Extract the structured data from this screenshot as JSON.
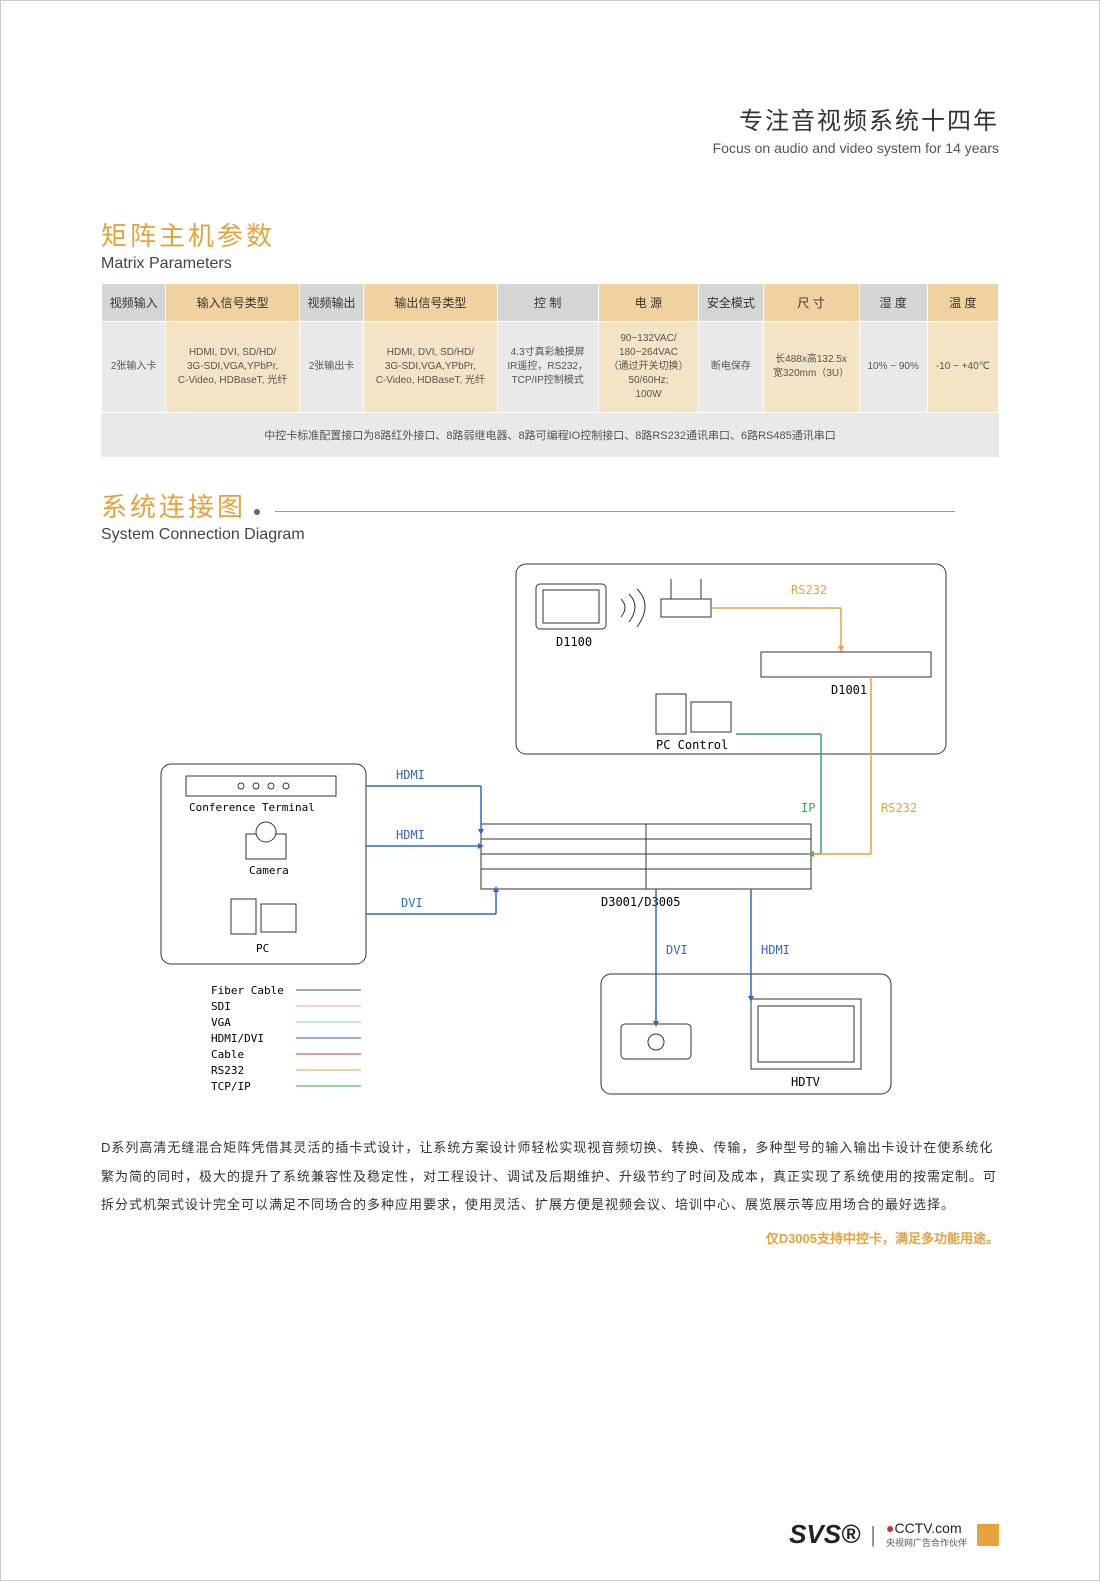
{
  "header": {
    "cn": "专注音视频系统十四年",
    "en": "Focus on audio and video system for 14 years"
  },
  "section1": {
    "title_cn": "矩阵主机参数",
    "title_en": "Matrix Parameters",
    "columns": [
      "视频输入",
      "输入信号类型",
      "视频输出",
      "输出信号类型",
      "控  制",
      "电  源",
      "安全模式",
      "尺  寸",
      "湿  度",
      "温  度"
    ],
    "row": [
      "2张输入卡",
      "HDMI, DVI, SD/HD/\n3G-SDI,VGA,YPbPr,\nC-Video, HDBaseT, 光纤",
      "2张输出卡",
      "HDMI, DVI, SD/HD/\n3G-SDI,VGA,YPbPr,\nC-Video, HDBaseT, 光纤",
      "4.3寸真彩触摸屏\nIR遥控，RS232，\nTCP/IP控制模式",
      "90~132VAC/\n180~264VAC\n（通过开关切换）\n50/60Hz;\n100W",
      "断电保存",
      "长488x高132.5x\n宽320mm（3U）",
      "10% ~ 90%",
      "-10 ~ +40℃"
    ],
    "footer": "中控卡标准配置接口为8路红外接口、8路弱继电器、8路可编程IO控制接口、8路RS232通讯串口、6路RS485通讯串口"
  },
  "section2": {
    "title_cn": "系统连接图",
    "title_en": "System Connection Diagram"
  },
  "diagram": {
    "labels": {
      "d1100": "D1100",
      "rs232": "RS232",
      "d1001": "D1001",
      "pc_control": "PC Control",
      "conf_term": "Conference Terminal",
      "camera": "Camera",
      "pc": "PC",
      "hdmi": "HDMI",
      "dvi": "DVI",
      "ip": "IP",
      "matrix": "D3001/D3005",
      "hdtv": "HDTV"
    },
    "legend": [
      {
        "name": "Fiber Cable",
        "color": "#555555"
      },
      {
        "name": "SDI",
        "color": "#f2a6c2"
      },
      {
        "name": "VGA",
        "color": "#7fdac0"
      },
      {
        "name": "HDMI/DVI",
        "color": "#3366cc"
      },
      {
        "name": "Cable",
        "color": "#cc3333"
      },
      {
        "name": "RS232",
        "color": "#e8a23c"
      },
      {
        "name": "TCP/IP",
        "color": "#33aa55"
      }
    ],
    "colors": {
      "hdmi": "#3366cc",
      "rs232": "#e8a23c",
      "ip": "#33aa55",
      "box": "#333333"
    }
  },
  "description": "D系列高清无缝混合矩阵凭借其灵活的插卡式设计，让系统方案设计师轻松实现视音频切换、转换、传输，多种型号的输入输出卡设计在使系统化繁为简的同时，极大的提升了系统兼容性及稳定性，对工程设计、调试及后期维护、升级节约了时间及成本，真正实现了系统使用的按需定制。可拆分式机架式设计完全可以满足不同场合的多种应用要求，使用灵活、扩展方便是视频会议、培训中心、展览展示等应用场合的最好选择。",
  "note": "仅D3005支持中控卡，满足多功能用途。",
  "footer": {
    "brand": "SVS®",
    "cctv": "CCTV.com",
    "cctv_sub": "央视网广告合作伙伴"
  }
}
